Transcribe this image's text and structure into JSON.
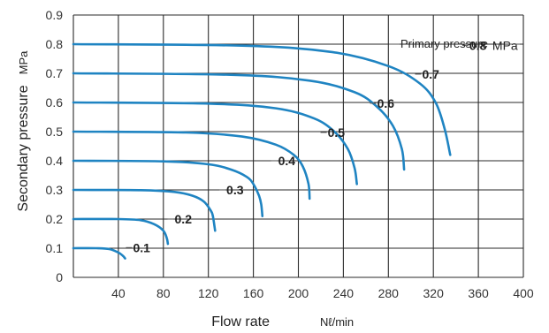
{
  "chart_data": {
    "type": "line",
    "xlabel": "Flow rate",
    "xunit": "Nℓ/min",
    "ylabel": "Secondary pressure",
    "yunit": "MPa",
    "xlim": [
      0,
      400
    ],
    "ylim": [
      0,
      0.9
    ],
    "xticks": [
      "40",
      "80",
      "120",
      "160",
      "200",
      "240",
      "280",
      "320",
      "360",
      "400"
    ],
    "yticks": [
      "0",
      "0.1",
      "0.2",
      "0.3",
      "0.4",
      "0.5",
      "0.6",
      "0.7",
      "0.8",
      "0.9"
    ],
    "grid": true,
    "annotation": "Primary pressure",
    "series_unit": "MPa",
    "series": [
      {
        "name": "0.1",
        "points": [
          [
            0,
            0.1
          ],
          [
            20,
            0.1
          ],
          [
            32,
            0.097
          ],
          [
            40,
            0.085
          ],
          [
            44,
            0.074
          ],
          [
            46,
            0.065
          ]
        ]
      },
      {
        "name": "0.2",
        "points": [
          [
            0,
            0.2
          ],
          [
            40,
            0.2
          ],
          [
            60,
            0.196
          ],
          [
            72,
            0.182
          ],
          [
            80,
            0.16
          ],
          [
            83,
            0.135
          ],
          [
            84,
            0.115
          ]
        ]
      },
      {
        "name": "0.3",
        "points": [
          [
            0,
            0.3
          ],
          [
            60,
            0.299
          ],
          [
            90,
            0.293
          ],
          [
            106,
            0.28
          ],
          [
            116,
            0.26
          ],
          [
            122,
            0.23
          ],
          [
            124,
            0.21
          ],
          [
            126,
            0.16
          ]
        ]
      },
      {
        "name": "0.4",
        "points": [
          [
            0,
            0.4
          ],
          [
            80,
            0.398
          ],
          [
            120,
            0.388
          ],
          [
            140,
            0.37
          ],
          [
            154,
            0.345
          ],
          [
            160,
            0.32
          ],
          [
            165,
            0.28
          ],
          [
            167,
            0.25
          ],
          [
            168,
            0.21
          ]
        ]
      },
      {
        "name": "0.5",
        "points": [
          [
            0,
            0.5
          ],
          [
            100,
            0.497
          ],
          [
            150,
            0.483
          ],
          [
            180,
            0.455
          ],
          [
            196,
            0.42
          ],
          [
            204,
            0.38
          ],
          [
            209,
            0.32
          ],
          [
            210,
            0.27
          ]
        ]
      },
      {
        "name": "0.6",
        "points": [
          [
            0,
            0.6
          ],
          [
            120,
            0.596
          ],
          [
            180,
            0.58
          ],
          [
            214,
            0.545
          ],
          [
            232,
            0.5
          ],
          [
            244,
            0.44
          ],
          [
            250,
            0.375
          ],
          [
            252,
            0.32
          ]
        ]
      },
      {
        "name": "0.7",
        "points": [
          [
            0,
            0.7
          ],
          [
            140,
            0.695
          ],
          [
            210,
            0.675
          ],
          [
            250,
            0.635
          ],
          [
            270,
            0.585
          ],
          [
            284,
            0.52
          ],
          [
            292,
            0.44
          ],
          [
            294,
            0.37
          ]
        ]
      },
      {
        "name": "0.8",
        "points": [
          [
            0,
            0.8
          ],
          [
            150,
            0.795
          ],
          [
            230,
            0.773
          ],
          [
            280,
            0.725
          ],
          [
            308,
            0.665
          ],
          [
            322,
            0.6
          ],
          [
            330,
            0.51
          ],
          [
            335,
            0.42
          ]
        ]
      }
    ]
  }
}
